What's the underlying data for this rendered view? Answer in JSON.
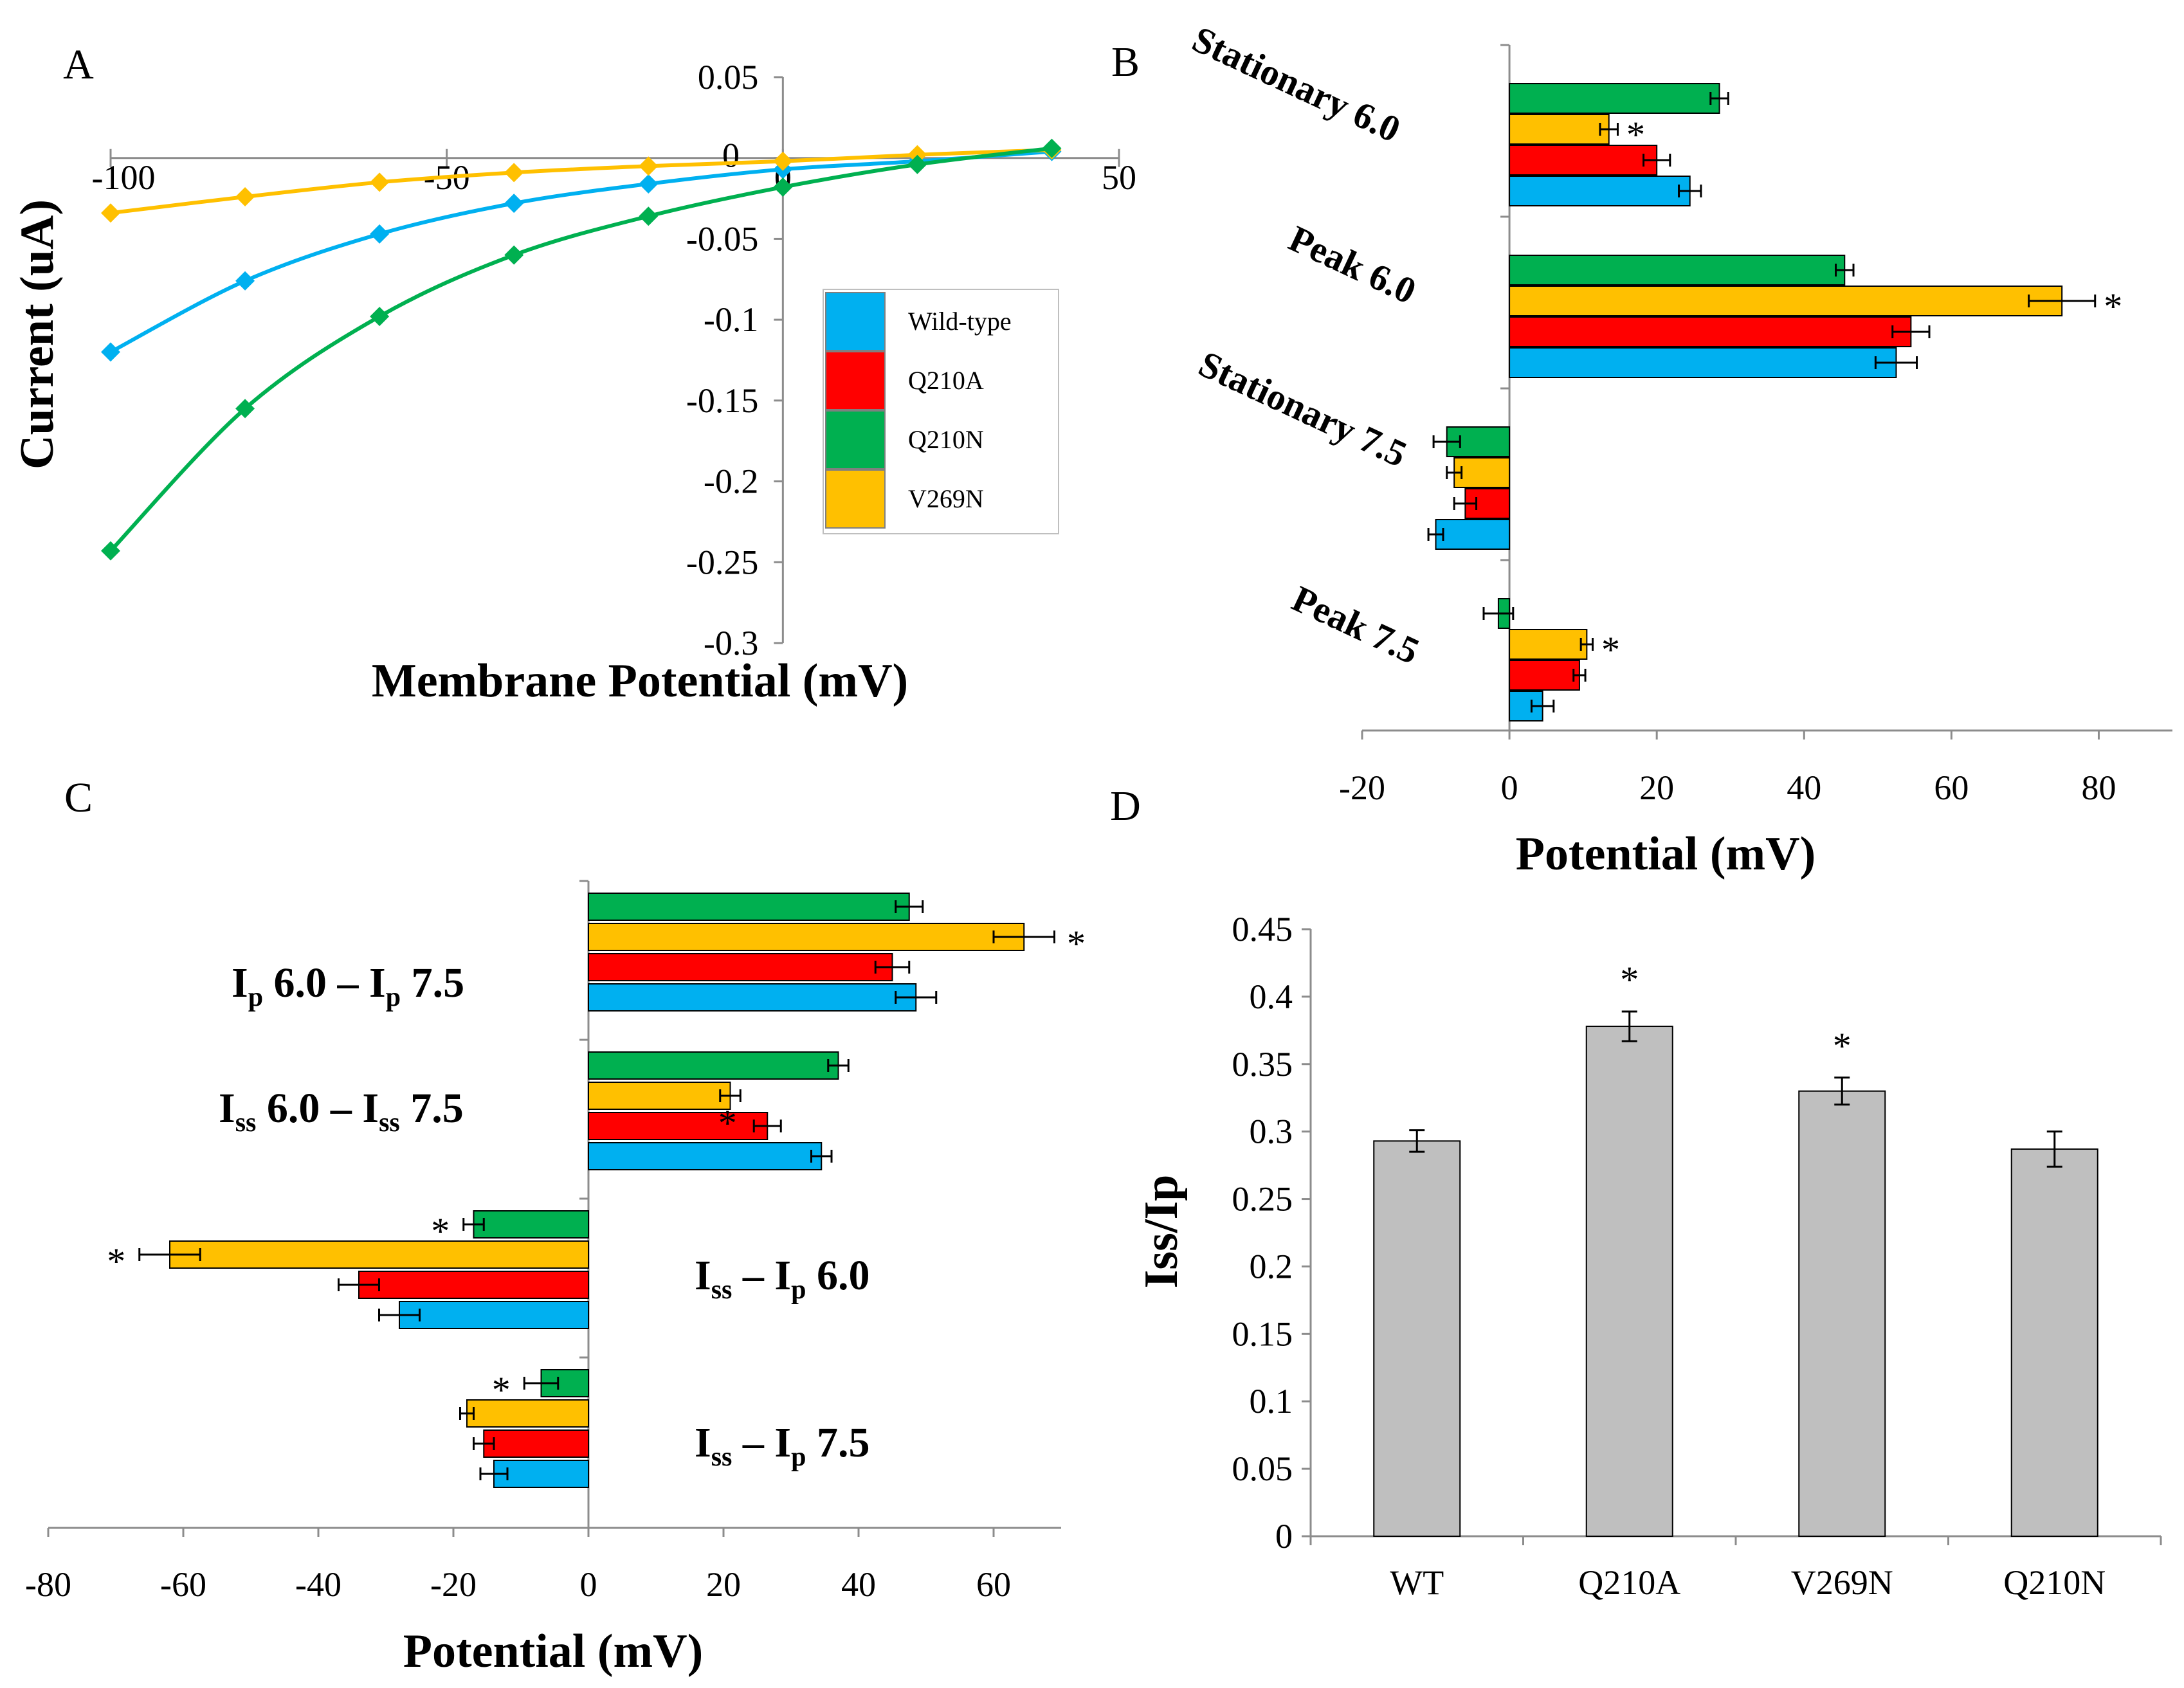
{
  "colors": {
    "wildtype": "#00b0f0",
    "q210a": "#ff0000",
    "q210n": "#00b050",
    "v269n": "#ffc000",
    "gray": "#bfbfbf"
  },
  "chart_data": [
    {
      "id": "A",
      "type": "line",
      "panel_label": "A",
      "xlabel": "Membrane Potential (mV)",
      "ylabel": "Current (uA)",
      "xlim": [
        -100,
        50
      ],
      "ylim": [
        -0.3,
        0.05
      ],
      "xticks": [
        -100,
        -50,
        0,
        50
      ],
      "xtick_labels": [
        "-100",
        "-50",
        "0",
        "50"
      ],
      "yticks": [
        0.05,
        0,
        -0.05,
        -0.1,
        -0.15,
        -0.2,
        -0.25,
        -0.3
      ],
      "ytick_labels": [
        "0.05",
        "0",
        "-0.05",
        "-0.1",
        "-0.15",
        "-0.2",
        "-0.25",
        "-0.3"
      ],
      "legend": [
        "Wild-type",
        "Q210A",
        "Q210N",
        "V269N"
      ],
      "x": [
        -100,
        -80,
        -60,
        -40,
        -20,
        0,
        20,
        40
      ],
      "series": [
        {
          "name": "Wild-type",
          "color": "#00b0f0",
          "values": [
            -0.12,
            -0.076,
            -0.047,
            -0.028,
            -0.016,
            -0.007,
            -0.002,
            0.004
          ]
        },
        {
          "name": "V269N",
          "color": "#ffc000",
          "values": [
            -0.034,
            -0.024,
            -0.015,
            -0.009,
            -0.005,
            -0.002,
            0.002,
            0.005
          ]
        },
        {
          "name": "Q210N",
          "color": "#00b050",
          "values": [
            -0.243,
            -0.155,
            -0.098,
            -0.06,
            -0.036,
            -0.018,
            -0.004,
            0.006
          ]
        }
      ]
    },
    {
      "id": "B",
      "type": "bar",
      "orientation": "horizontal",
      "panel_label": "B",
      "xlabel": "Potential (mV)",
      "xlim": [
        -20,
        90
      ],
      "xticks": [
        -20,
        0,
        20,
        40,
        60,
        80
      ],
      "xtick_labels": [
        "-20",
        "0",
        "20",
        "40",
        "60",
        "80"
      ],
      "categories": [
        "Stationary 6.0",
        "Peak 6.0",
        "Stationary 7.5",
        "Peak 7.5"
      ],
      "series": [
        {
          "name": "Q210N",
          "color": "#00b050",
          "values": [
            28.5,
            45.5,
            -8.5,
            -1.5
          ],
          "errors": [
            1.2,
            1.2,
            1.8,
            2.0
          ]
        },
        {
          "name": "V269N",
          "color": "#ffc000",
          "values": [
            13.5,
            75.0,
            -7.5,
            10.5
          ],
          "errors": [
            1.2,
            4.5,
            1.0,
            0.8
          ]
        },
        {
          "name": "Q210A",
          "color": "#ff0000",
          "values": [
            20.0,
            54.5,
            -6.0,
            9.5
          ],
          "errors": [
            1.8,
            2.5,
            1.5,
            0.8
          ]
        },
        {
          "name": "Wild-type",
          "color": "#00b0f0",
          "values": [
            24.5,
            52.5,
            -10.0,
            4.5
          ],
          "errors": [
            1.5,
            2.8,
            1.0,
            1.5
          ]
        }
      ],
      "significance": [
        {
          "category": 0,
          "series": 1,
          "label": "*"
        },
        {
          "category": 1,
          "series": 1,
          "label": "*"
        },
        {
          "category": 3,
          "series": 1,
          "label": "*"
        }
      ]
    },
    {
      "id": "C",
      "type": "bar",
      "orientation": "horizontal",
      "panel_label": "C",
      "xlabel": "Potential (mV)",
      "xlim": [
        -80,
        70
      ],
      "xticks": [
        -80,
        -60,
        -40,
        -20,
        0,
        20,
        40,
        60
      ],
      "xtick_labels": [
        "-80",
        "-60",
        "-40",
        "-20",
        "0",
        "20",
        "40",
        "60"
      ],
      "categories": [
        {
          "main": "I",
          "sub1": "p",
          "mid": " 6.0 – I",
          "sub2": "p",
          "tail": " 7.5"
        },
        {
          "main": "I",
          "sub1": "ss",
          "mid": " 6.0 – I",
          "sub2": "ss",
          "tail": " 7.5"
        },
        {
          "main": "I",
          "sub1": "ss",
          "mid": " – I",
          "sub2": "p",
          "tail": " 6.0"
        },
        {
          "main": "I",
          "sub1": "ss",
          "mid": " – I",
          "sub2": "p",
          "tail": " 7.5"
        }
      ],
      "series": [
        {
          "name": "Q210N",
          "color": "#00b050",
          "values": [
            47.5,
            37.0,
            -17.0,
            -7.0
          ],
          "errors": [
            2.0,
            1.5,
            1.5,
            2.5
          ]
        },
        {
          "name": "V269N",
          "color": "#ffc000",
          "values": [
            64.5,
            21.0,
            -62.0,
            -18.0
          ],
          "errors": [
            4.5,
            1.5,
            4.5,
            1.0
          ]
        },
        {
          "name": "Q210A",
          "color": "#ff0000",
          "values": [
            45.0,
            26.5,
            -34.0,
            -15.5
          ],
          "errors": [
            2.5,
            2.0,
            3.0,
            1.5
          ]
        },
        {
          "name": "Wild-type",
          "color": "#00b0f0",
          "values": [
            48.5,
            34.5,
            -28.0,
            -14.0
          ],
          "errors": [
            3.0,
            1.5,
            3.0,
            2.0
          ]
        }
      ],
      "significance": [
        {
          "category": 0,
          "series": 1,
          "label": "*"
        },
        {
          "category": 1,
          "series": 1,
          "label": "*"
        },
        {
          "category": 2,
          "series": 0,
          "label": "*"
        },
        {
          "category": 2,
          "series": 1,
          "label": "*"
        },
        {
          "category": 3,
          "series": 0,
          "label": "*"
        }
      ]
    },
    {
      "id": "D",
      "type": "bar",
      "orientation": "vertical",
      "panel_label": "D",
      "ylabel": "Iss/Ip",
      "ylim": [
        0,
        0.45
      ],
      "yticks": [
        0,
        0.05,
        0.1,
        0.15,
        0.2,
        0.25,
        0.3,
        0.35,
        0.4,
        0.45
      ],
      "ytick_labels": [
        "0",
        "0.05",
        "0.1",
        "0.15",
        "0.2",
        "0.25",
        "0.3",
        "0.35",
        "0.4",
        "0.45"
      ],
      "categories": [
        "WT",
        "Q210A",
        "V269N",
        "Q210N"
      ],
      "values": [
        0.293,
        0.378,
        0.33,
        0.287
      ],
      "errors": [
        0.008,
        0.011,
        0.01,
        0.013
      ],
      "color": "#bfbfbf",
      "significance": [
        {
          "index": 1,
          "label": "*"
        },
        {
          "index": 2,
          "label": "*"
        }
      ]
    }
  ]
}
